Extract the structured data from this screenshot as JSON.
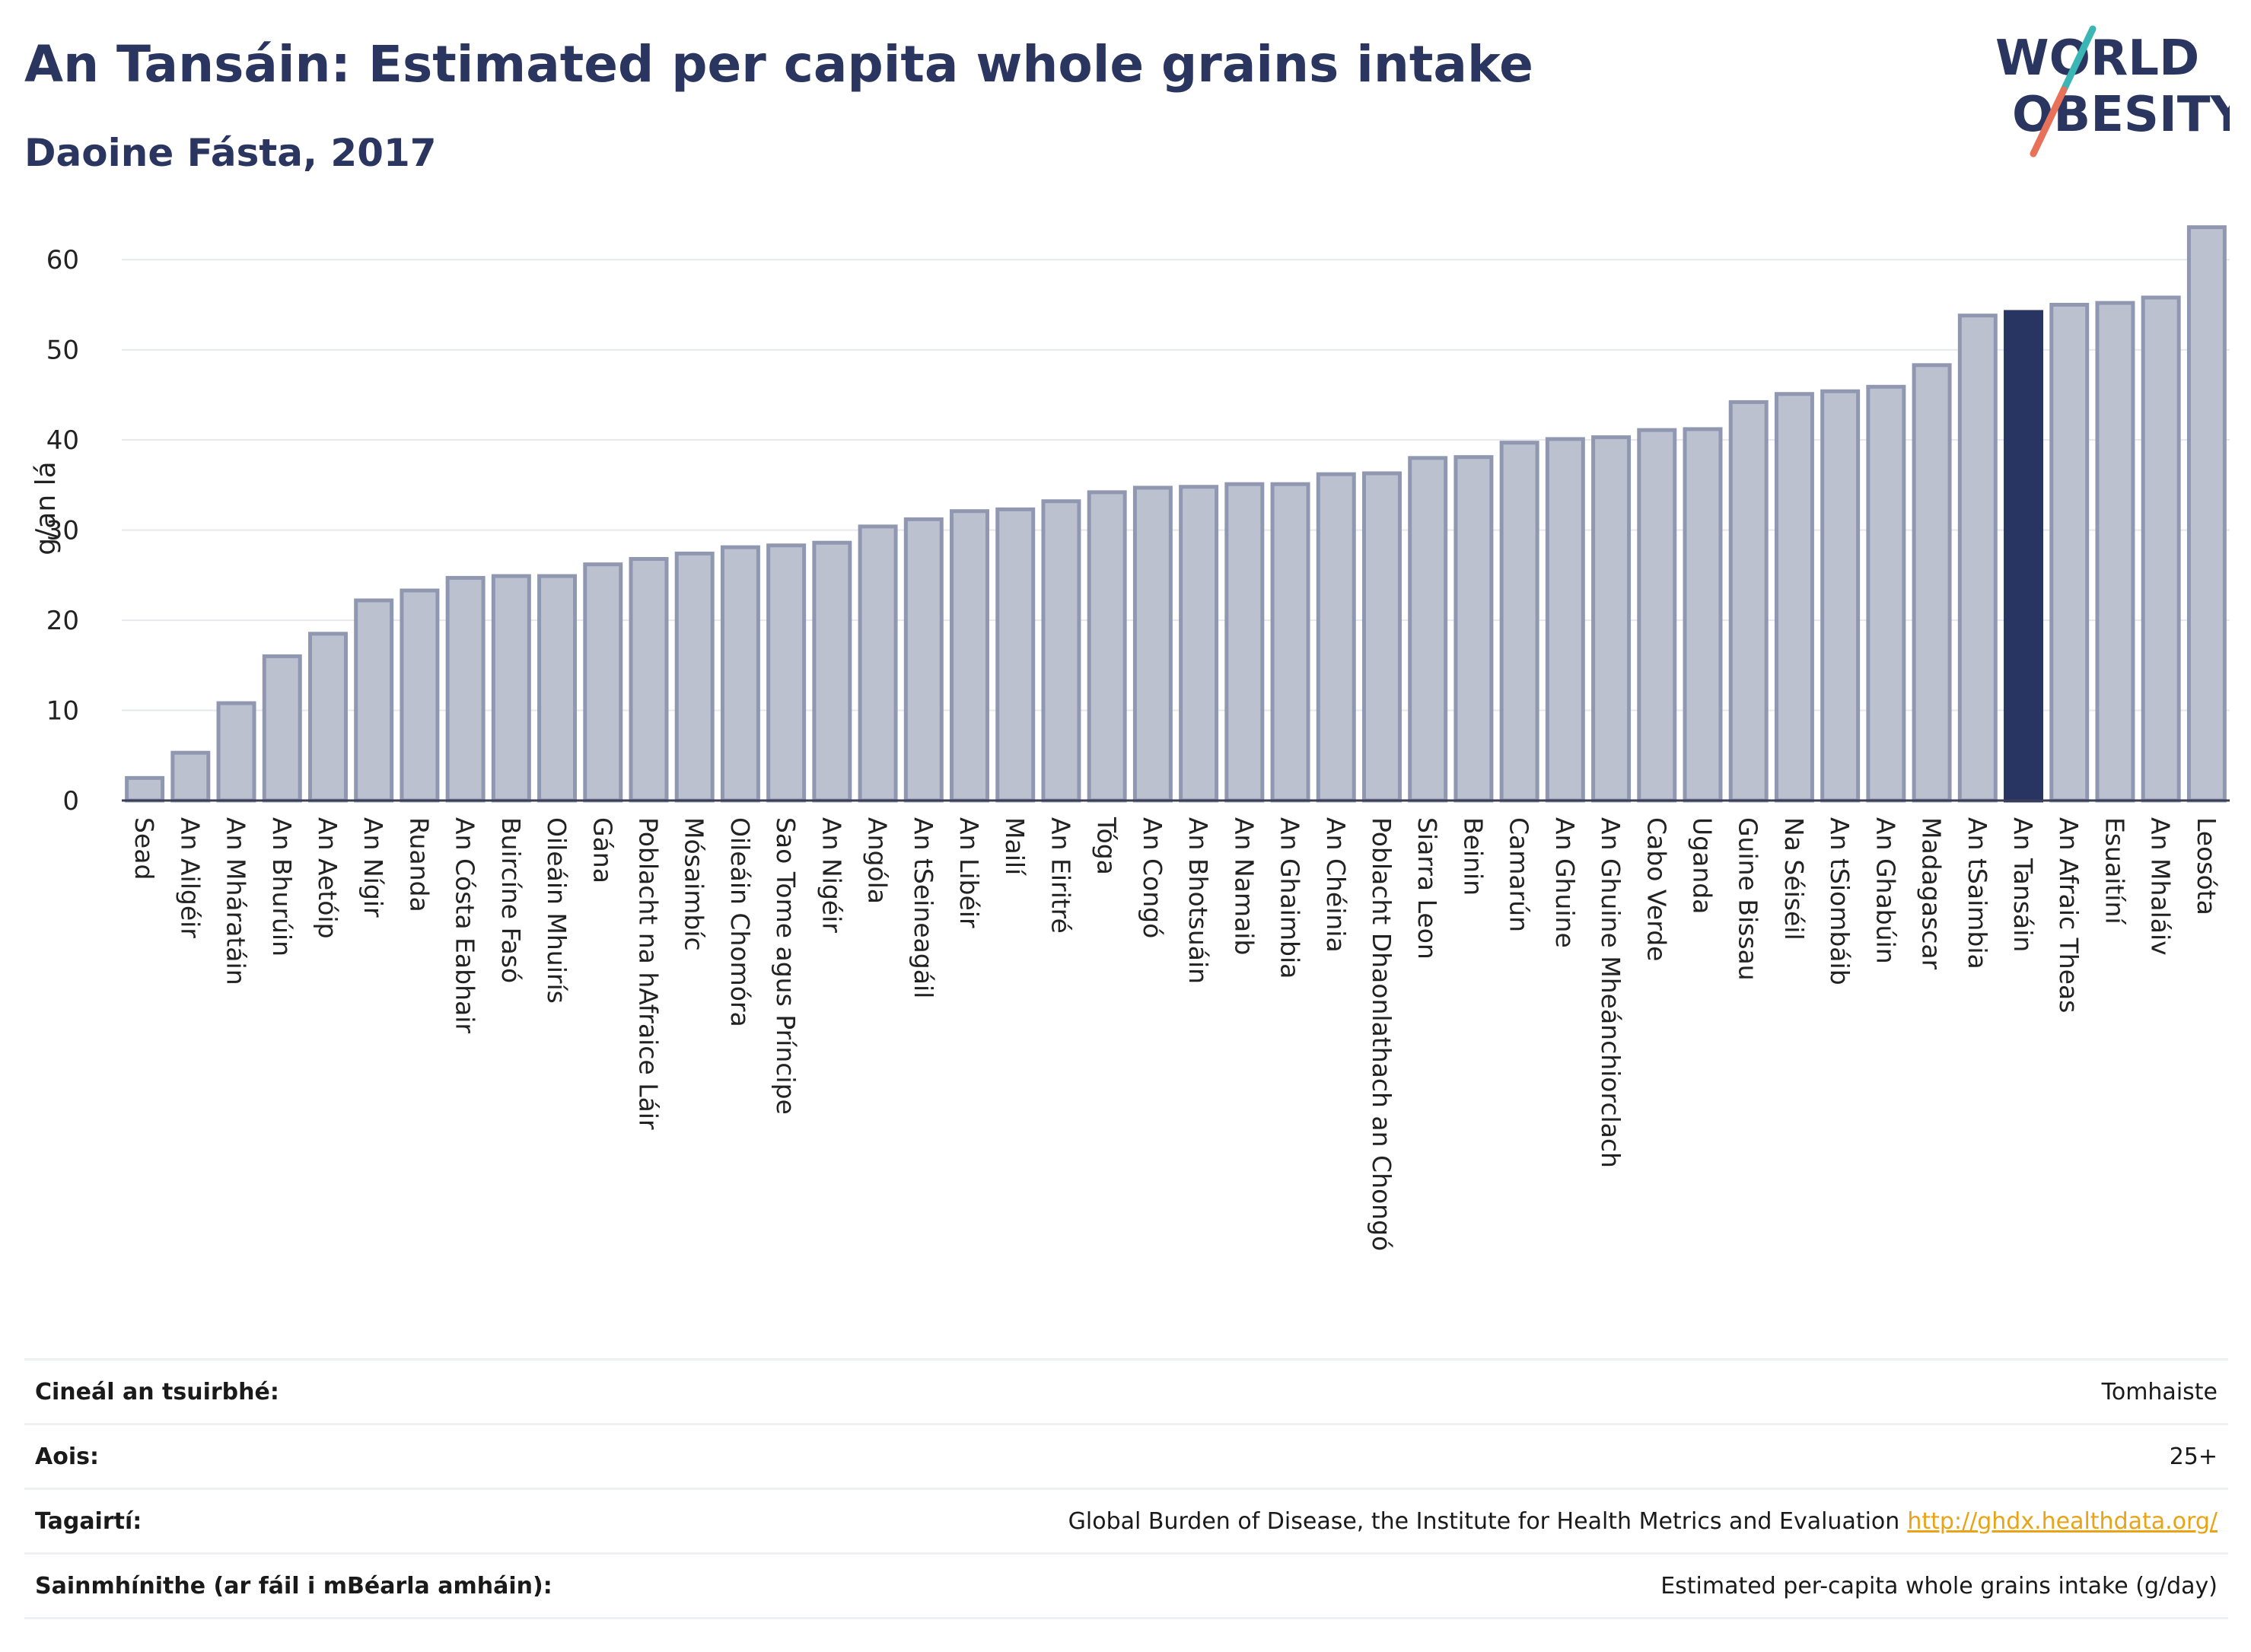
{
  "header": {
    "title": "An Tansáin: Estimated per capita whole grains intake",
    "subtitle": "Daoine Fásta, 2017"
  },
  "logo": {
    "line1": "WORLD",
    "line2": "OBESITY",
    "text_color": "#2b3660",
    "slash_color_top": "#3bb6b4",
    "slash_color_bottom": "#e8715a"
  },
  "colors": {
    "bar_default": "#bcc1d0",
    "bar_border": "#9097b0",
    "bar_highlight": "#283562",
    "grid": "#e6e8ee",
    "axis": "#3a3f55"
  },
  "chart_data": {
    "type": "bar",
    "title": "An Tansáin: Estimated per capita whole grains intake",
    "subtitle": "Daoine Fásta, 2017",
    "xlabel": "",
    "ylabel": "g/an lá",
    "ylim": [
      0,
      65
    ],
    "yticks": [
      0,
      10,
      20,
      30,
      40,
      50,
      60
    ],
    "grid": true,
    "highlight": "An Tansáin",
    "categories": [
      "Sead",
      "An Ailgéir",
      "An Mháratáin",
      "An Bhurúin",
      "An Aetóip",
      "An Nígir",
      "Ruanda",
      "An Cósta Eabhair",
      "Buircíne Fasó",
      "Oileáin Mhuirís",
      "Gána",
      "Poblacht na hAfraice Láir",
      "Mósaimbíc",
      "Oileáin Chomóra",
      "Sao Tome agus Príncipe",
      "An Nigéir",
      "Angóla",
      "An tSeineagáil",
      "An Libéir",
      "Mailí",
      "An Eiritré",
      "Tóga",
      "An Congó",
      "An Bhotsuáin",
      "An Namaib",
      "An Ghaimbia",
      "An Chéinia",
      "Poblacht Dhaonlathach an Chongó",
      "Siarra Leon",
      "Beinin",
      "Camarún",
      "An Ghuine",
      "An Ghuine Mheánchiorclach",
      "Cabo Verde",
      "Uganda",
      "Guine Bissau",
      "Na Séiséil",
      "An tSiombáib",
      "An Ghabúin",
      "Madagascar",
      "An tSaimbia",
      "An Tansáin",
      "An Afraic Theas",
      "Esuaitíní",
      "An Mhaláiv",
      "Leosóta"
    ],
    "values": [
      2.5,
      5.3,
      10.8,
      16.0,
      18.5,
      22.2,
      23.3,
      24.7,
      24.9,
      24.9,
      26.2,
      26.8,
      27.4,
      28.1,
      28.3,
      28.6,
      30.4,
      31.2,
      32.1,
      32.3,
      33.2,
      34.2,
      34.7,
      34.8,
      35.1,
      35.1,
      36.2,
      36.3,
      38.0,
      38.1,
      39.7,
      40.1,
      40.3,
      41.1,
      41.2,
      44.2,
      45.1,
      45.4,
      45.9,
      48.3,
      53.8,
      54.2,
      55.0,
      55.2,
      55.8,
      63.6
    ]
  },
  "meta": {
    "rows": [
      {
        "label": "Cineál an tsuirbhé:",
        "value": "Tomhaiste"
      },
      {
        "label": "Aois:",
        "value": "25+"
      },
      {
        "label": "Tagairtí:",
        "value": "Global Burden of Disease, the Institute for Health Metrics and Evaluation",
        "link": "http://ghdx.healthdata.org/"
      },
      {
        "label": "Sainmhínithe (ar fáil i mBéarla amháin):",
        "value": "Estimated per-capita whole grains intake (g/day)"
      }
    ]
  }
}
